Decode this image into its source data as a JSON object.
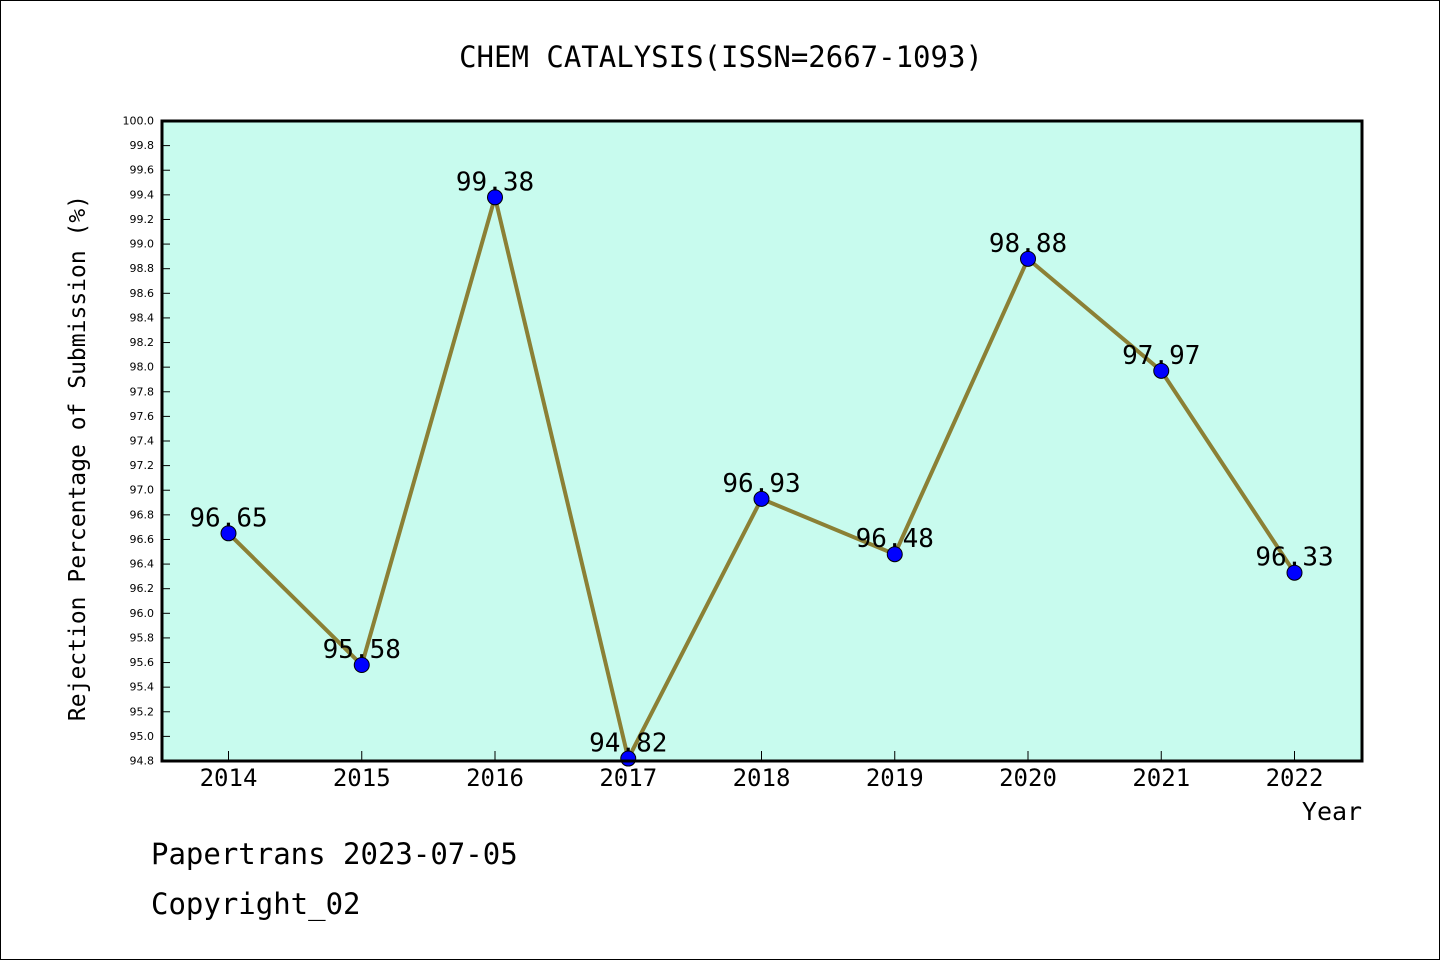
{
  "chart_data": {
    "type": "line",
    "title": "CHEM CATALYSIS(ISSN=2667-1093)",
    "xlabel": "Year",
    "ylabel": "Rejection Percentage of Submission (%)",
    "categories": [
      "2014",
      "2015",
      "2016",
      "2017",
      "2018",
      "2019",
      "2020",
      "2021",
      "2022"
    ],
    "series": [
      {
        "values": [
          96.65,
          95.58,
          99.38,
          94.82,
          96.93,
          96.48,
          98.88,
          97.97,
          96.33
        ],
        "labels": [
          "96.65",
          "95.58",
          "99.38",
          "94.82",
          "96.93",
          "96.48",
          "98.88",
          "97.97",
          "96.33"
        ]
      }
    ],
    "ylim": [
      94.8,
      100.0
    ],
    "yticks": [
      "94.8",
      "95.0",
      "95.2",
      "95.4",
      "95.6",
      "95.8",
      "96.0",
      "96.2",
      "96.4",
      "96.6",
      "96.8",
      "97.0",
      "97.2",
      "97.4",
      "97.6",
      "97.8",
      "98.0",
      "98.2",
      "98.4",
      "98.6",
      "98.8",
      "99.0",
      "99.2",
      "99.4",
      "99.6",
      "99.8",
      "100.0"
    ],
    "grid": false,
    "legend": "none",
    "colors": {
      "plot_background": "#c8fbee",
      "line": "#8b8035",
      "marker": "#0000ff",
      "axis": "#000000"
    }
  },
  "footer": {
    "source": "Papertrans 2023-07-05",
    "copyright": "Copyright_02"
  }
}
